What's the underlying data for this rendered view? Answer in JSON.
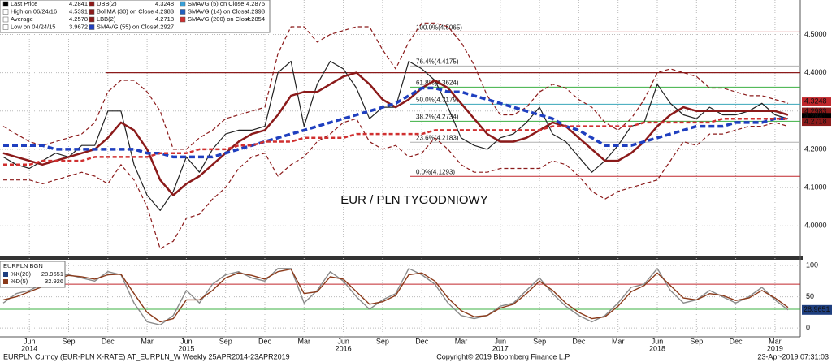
{
  "chart_data": [
    {
      "type": "line",
      "annotation": "EUR / PLN TYGODNIOWY",
      "annotation_color": "#c0262b",
      "ylim": [
        3.92,
        4.59
      ],
      "yticks": [
        {
          "value": 4.0,
          "label": "4.0000"
        },
        {
          "value": 4.1,
          "label": "4.1000"
        },
        {
          "value": 4.2,
          "label": "4.2000"
        },
        {
          "value": 4.3,
          "label": "4.3000"
        },
        {
          "value": 4.4,
          "label": "4.4000"
        },
        {
          "value": 4.5,
          "label": "4.5000"
        }
      ],
      "grid": true,
      "legend": [
        {
          "name": "Last Price",
          "value": 4.2841,
          "color": "#000000"
        },
        {
          "name": "High on 06/24/16",
          "value": 4.5391,
          "color": "#ffffff"
        },
        {
          "name": "Average",
          "value": 4.2578,
          "color": "#ffffff"
        },
        {
          "name": "Low on 04/24/15",
          "value": 3.9672,
          "color": "#ffffff"
        },
        {
          "name": "UBB(2)",
          "value": 4.3248,
          "color": "#8b1a1a"
        },
        {
          "name": "BollMA (30)  on Close",
          "value": 4.2983,
          "color": "#8b1a1a"
        },
        {
          "name": "LBB(2)",
          "value": 4.2718,
          "color": "#8b1a1a"
        },
        {
          "name": "SMAVG (55)  on Close",
          "value": 4.2927,
          "color": "#1f3fbf"
        },
        {
          "name": "SMAVG (5)  on Close",
          "value": 4.2875,
          "color": "#38a0d8"
        },
        {
          "name": "SMAVG (14)  on Close",
          "value": 4.2998,
          "color": "#2060c0"
        },
        {
          "name": "SMAVG (200)  on Close",
          "value": 4.2854,
          "color": "#d03030"
        }
      ],
      "series": [
        {
          "style": "solid",
          "width": 1.2,
          "color": "#222222",
          "values": [
            4.18,
            4.16,
            4.15,
            4.17,
            4.19,
            4.18,
            4.21,
            4.21,
            4.3,
            4.3,
            4.16,
            4.08,
            4.04,
            4.09,
            4.18,
            4.14,
            4.2,
            4.24,
            4.25,
            4.25,
            4.26,
            4.4,
            4.43,
            4.26,
            4.37,
            4.43,
            4.41,
            4.36,
            4.28,
            4.31,
            4.31,
            4.43,
            4.41,
            4.38,
            4.31,
            4.23,
            4.21,
            4.2,
            4.23,
            4.24,
            4.27,
            4.31,
            4.24,
            4.22,
            4.18,
            4.14,
            4.17,
            4.21,
            4.26,
            4.27,
            4.37,
            4.32,
            4.29,
            4.28,
            4.31,
            4.29,
            4.29,
            4.3,
            4.32,
            4.29,
            4.28
          ]
        },
        {
          "style": "dashed",
          "width": 1.2,
          "color": "#8b1a1a",
          "values": [
            4.26,
            4.24,
            4.22,
            4.21,
            4.22,
            4.23,
            4.24,
            4.27,
            4.35,
            4.38,
            4.38,
            4.35,
            4.3,
            4.2,
            4.2,
            4.23,
            4.25,
            4.28,
            4.29,
            4.3,
            4.31,
            4.45,
            4.52,
            4.52,
            4.48,
            4.5,
            4.51,
            4.52,
            4.52,
            4.46,
            4.41,
            4.48,
            4.53,
            4.53,
            4.52,
            4.48,
            4.42,
            4.34,
            4.29,
            4.29,
            4.31,
            4.35,
            4.37,
            4.36,
            4.33,
            4.31,
            4.27,
            4.25,
            4.28,
            4.33,
            4.4,
            4.41,
            4.4,
            4.39,
            4.36,
            4.36,
            4.35,
            4.34,
            4.34,
            4.33,
            4.32
          ]
        },
        {
          "style": "solid",
          "width": 2.5,
          "color": "#8b1a1a",
          "values": [
            4.19,
            4.18,
            4.17,
            4.16,
            4.17,
            4.18,
            4.19,
            4.2,
            4.23,
            4.27,
            4.25,
            4.2,
            4.12,
            4.08,
            4.11,
            4.13,
            4.16,
            4.19,
            4.22,
            4.24,
            4.25,
            4.29,
            4.34,
            4.35,
            4.35,
            4.37,
            4.39,
            4.4,
            4.37,
            4.33,
            4.31,
            4.33,
            4.36,
            4.38,
            4.36,
            4.32,
            4.28,
            4.24,
            4.22,
            4.22,
            4.23,
            4.25,
            4.27,
            4.26,
            4.23,
            4.2,
            4.17,
            4.17,
            4.19,
            4.22,
            4.26,
            4.29,
            4.31,
            4.3,
            4.3,
            4.3,
            4.3,
            4.3,
            4.3,
            4.3,
            4.29
          ]
        },
        {
          "style": "dashed",
          "width": 1.2,
          "color": "#8b1a1a",
          "values": [
            4.12,
            4.12,
            4.12,
            4.11,
            4.12,
            4.13,
            4.14,
            4.13,
            4.11,
            4.16,
            4.12,
            4.05,
            3.94,
            3.96,
            4.02,
            4.03,
            4.07,
            4.1,
            4.15,
            4.18,
            4.19,
            4.13,
            4.16,
            4.18,
            4.22,
            4.24,
            4.27,
            4.28,
            4.22,
            4.2,
            4.21,
            4.18,
            4.19,
            4.23,
            4.2,
            4.16,
            4.14,
            4.14,
            4.15,
            4.15,
            4.15,
            4.15,
            4.17,
            4.16,
            4.13,
            4.09,
            4.07,
            4.09,
            4.1,
            4.11,
            4.12,
            4.17,
            4.22,
            4.21,
            4.24,
            4.24,
            4.25,
            4.26,
            4.26,
            4.27,
            4.26
          ]
        },
        {
          "style": "dashed",
          "width": 3.5,
          "color": "#1f3fbf",
          "values": [
            4.21,
            4.21,
            4.21,
            4.21,
            4.2,
            4.2,
            4.2,
            4.2,
            4.2,
            4.2,
            4.2,
            4.19,
            4.19,
            4.18,
            4.18,
            4.18,
            4.18,
            4.19,
            4.2,
            4.21,
            4.22,
            4.23,
            4.24,
            4.25,
            4.26,
            4.27,
            4.28,
            4.29,
            4.3,
            4.31,
            4.32,
            4.34,
            4.36,
            4.36,
            4.35,
            4.35,
            4.34,
            4.33,
            4.32,
            4.31,
            4.3,
            4.29,
            4.28,
            4.26,
            4.25,
            4.23,
            4.21,
            4.21,
            4.21,
            4.22,
            4.23,
            4.24,
            4.25,
            4.26,
            4.26,
            4.26,
            4.27,
            4.27,
            4.27,
            4.28,
            4.28
          ]
        },
        {
          "style": "dashed",
          "width": 2.5,
          "color": "#d03030",
          "values": [
            4.16,
            4.16,
            4.16,
            4.17,
            4.17,
            4.17,
            4.17,
            4.18,
            4.18,
            4.18,
            4.18,
            4.18,
            4.19,
            4.19,
            4.19,
            4.2,
            4.2,
            4.2,
            4.21,
            4.21,
            4.22,
            4.22,
            4.22,
            4.23,
            4.23,
            4.23,
            4.23,
            4.24,
            4.24,
            4.24,
            4.24,
            4.24,
            4.24,
            4.25,
            4.25,
            4.25,
            4.25,
            4.25,
            4.25,
            4.25,
            4.25,
            4.25,
            4.26,
            4.26,
            4.26,
            4.26,
            4.26,
            4.26,
            4.26,
            4.27,
            4.27,
            4.27,
            4.27,
            4.27,
            4.27,
            4.28,
            4.28,
            4.28,
            4.28,
            4.28,
            4.28
          ]
        }
      ],
      "hline": {
        "value": 4.4,
        "color": "#8b1a1a"
      },
      "fib": [
        {
          "label": "100.0%(4.5065)",
          "value": 4.5065,
          "color": "#c0262b"
        },
        {
          "label": "76.4%(4.4175)",
          "value": 4.4175,
          "color": "#b0b0b0"
        },
        {
          "label": "61.8%(4.3624)",
          "value": 4.3624,
          "color": "#3cb043"
        },
        {
          "label": "50.0%(4.3179)",
          "value": 4.3179,
          "color": "#3aa6b9"
        },
        {
          "label": "38.2%(4.2734)",
          "value": 4.2734,
          "color": "#3cb043"
        },
        {
          "label": "23.6%(4.2183)",
          "value": 4.2183,
          "color": "#b0b0b0"
        },
        {
          "label": "0.0%(4.1293)",
          "value": 4.1293,
          "color": "#c0262b"
        }
      ],
      "tags": [
        {
          "legend": 4,
          "color": "#c0262b"
        },
        {
          "legend": 5,
          "color": "#8b1a1a"
        },
        {
          "legend": 0,
          "color": "#000000"
        },
        {
          "legend": 6,
          "color": "#8b1a1a"
        }
      ]
    },
    {
      "type": "line",
      "title": "EURPLN BGN",
      "categories": [
        null,
        null,
        "Jun",
        null,
        null,
        "Sep",
        null,
        null,
        "Dec",
        null,
        null,
        "Mar",
        null,
        null,
        "Jun",
        null,
        null,
        "Sep",
        null,
        null,
        "Dec",
        null,
        null,
        "Mar",
        null,
        null,
        "Jun",
        null,
        null,
        "Sep",
        null,
        null,
        "Dec",
        null,
        null,
        "Mar",
        null,
        null,
        "Jun",
        null,
        null,
        "Sep",
        null,
        null,
        "Dec",
        null,
        null,
        "Mar",
        null,
        null,
        "Jun",
        null,
        null,
        "Sep",
        null,
        null,
        "Dec",
        null,
        null,
        "Mar",
        null
      ],
      "years": [
        null,
        null,
        "2014",
        null,
        null,
        null,
        null,
        null,
        null,
        null,
        null,
        null,
        null,
        null,
        "2015",
        null,
        null,
        null,
        null,
        null,
        null,
        null,
        null,
        null,
        null,
        null,
        "2016",
        null,
        null,
        null,
        null,
        null,
        null,
        null,
        null,
        null,
        null,
        null,
        "2017",
        null,
        null,
        null,
        null,
        null,
        null,
        null,
        null,
        null,
        null,
        null,
        "2018",
        null,
        null,
        null,
        null,
        null,
        null,
        null,
        null,
        "2019",
        null
      ],
      "ylim": [
        -14,
        109
      ],
      "yticks": [
        0,
        50,
        100
      ],
      "levels": [
        {
          "value": 30,
          "color": "#3cb043"
        },
        {
          "value": 70,
          "color": "#c0262b"
        }
      ],
      "legend": [
        {
          "name": "%K(20)",
          "value": 28.9651,
          "color": "#1f3f7f"
        },
        {
          "name": "%D(5)",
          "value": 32.926,
          "color": "#8b3a1a"
        }
      ],
      "series": [
        {
          "color": "#8a8a8a",
          "values": [
            40,
            55,
            60,
            70,
            85,
            85,
            80,
            75,
            90,
            85,
            40,
            10,
            5,
            20,
            60,
            40,
            70,
            85,
            90,
            80,
            75,
            95,
            95,
            40,
            60,
            90,
            75,
            50,
            30,
            45,
            55,
            95,
            85,
            70,
            40,
            20,
            15,
            20,
            35,
            40,
            60,
            80,
            55,
            35,
            20,
            10,
            20,
            40,
            65,
            70,
            95,
            60,
            40,
            45,
            60,
            50,
            40,
            50,
            65,
            45,
            29
          ]
        },
        {
          "color": "#8b3a1a",
          "values": [
            45,
            50,
            58,
            66,
            78,
            84,
            82,
            78,
            85,
            86,
            55,
            25,
            10,
            15,
            45,
            45,
            60,
            80,
            88,
            84,
            78,
            90,
            94,
            55,
            58,
            82,
            78,
            58,
            38,
            42,
            52,
            85,
            88,
            75,
            48,
            28,
            18,
            20,
            32,
            38,
            55,
            75,
            60,
            40,
            25,
            15,
            18,
            35,
            58,
            68,
            88,
            68,
            48,
            45,
            55,
            52,
            44,
            48,
            60,
            48,
            33
          ]
        }
      ],
      "tag_color": "#1f3f7f"
    }
  ],
  "footer": {
    "left": "EURPLN Curncy (EUR-PLN X-RATE) AT_EURPLN_W  Weekly 25APR2014-23APR2019",
    "center": "Copyright© 2019 Bloomberg Finance L.P.",
    "right": "23-Apr-2019 07:31:03"
  }
}
